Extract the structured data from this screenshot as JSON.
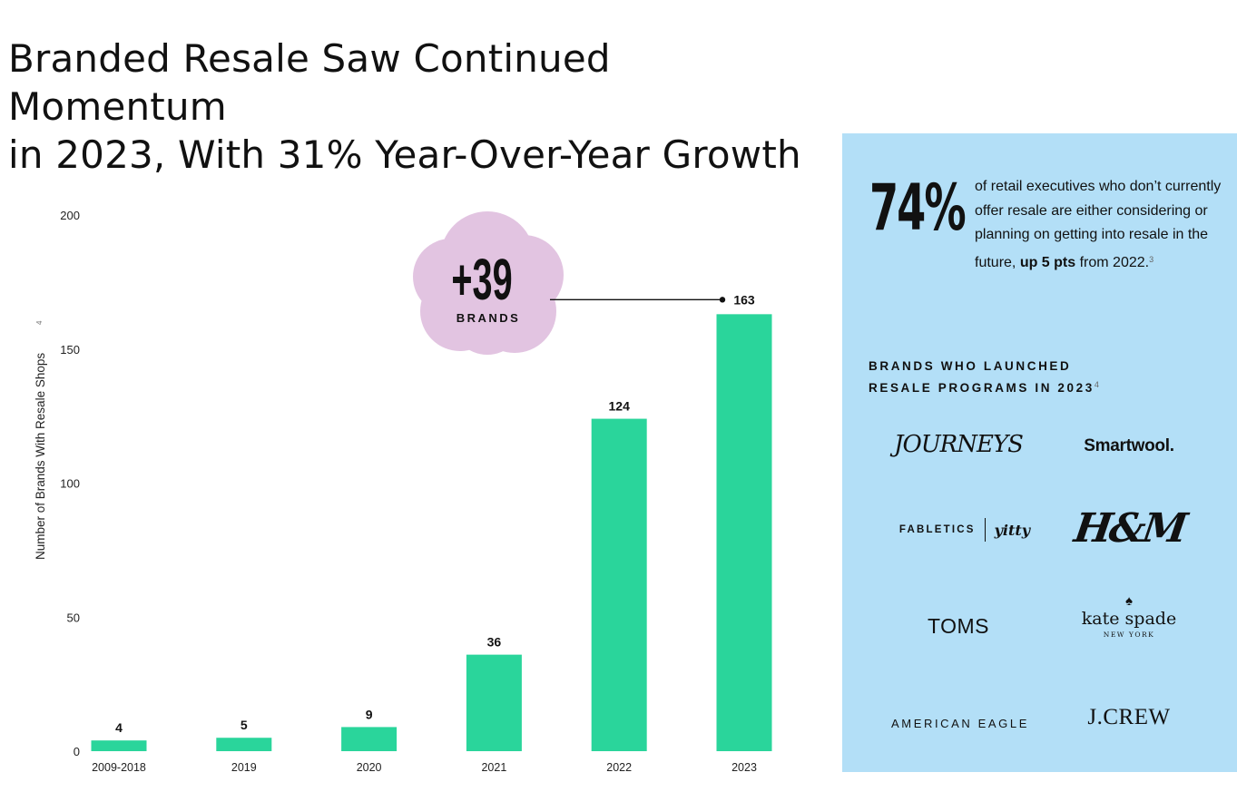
{
  "title_line1": "Branded Resale Saw Continued Momentum",
  "title_line2": "in 2023, With 31% Year-Over-Year Growth",
  "chart_data": {
    "type": "bar",
    "ylabel": "Number of Brands With Resale Shops",
    "ylabel_note": "4",
    "ylim": [
      0,
      200
    ],
    "yticks": [
      0,
      50,
      100,
      150,
      200
    ],
    "categories": [
      "2009-2018",
      "2019",
      "2020",
      "2021",
      "2022",
      "2023"
    ],
    "values": [
      4,
      5,
      9,
      36,
      124,
      163
    ],
    "bar_color": "#2ad59b",
    "grid": false,
    "annotation": {
      "value": "+39",
      "label": "BRANDS",
      "bubble_color": "#e2c4e1",
      "points_to": "2023"
    }
  },
  "panel": {
    "background": "#b3dff7",
    "stat_value": "74%",
    "stat_text": "of retail executives who don’t currently offer resale are either considering or planning on getting into resale in the future,",
    "stat_bold": "up 5 pts",
    "stat_tail": "from 2022.",
    "stat_note": "3",
    "brands_heading_line1": "BRANDS WHO LAUNCHED",
    "brands_heading_line2": "RESALE  PROGRAMS IN 2023",
    "brands_heading_note": "4",
    "logos": {
      "journeys": "JOURNEYS",
      "smartwool": "Smartwool.",
      "fabletics": "FABLETICS",
      "yitty": "yitty",
      "hm": "H&M",
      "toms": "TOMS",
      "kate_spade": "kate spade",
      "kate_spade_sub": "NEW YORK",
      "american_eagle": "AMERICAN EAGLE",
      "jcrew": "J.CREW"
    }
  }
}
